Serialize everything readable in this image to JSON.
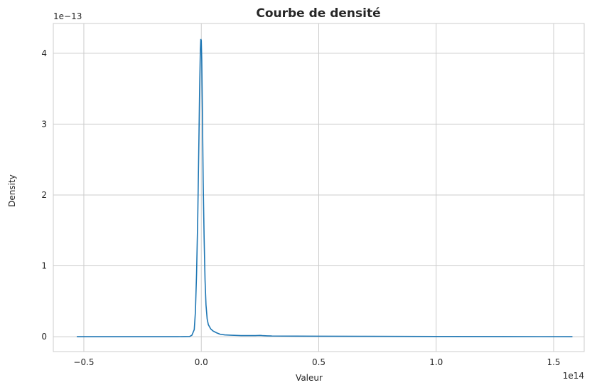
{
  "chart_data": {
    "type": "line",
    "title": "Courbe de densité",
    "xlabel": "Valeur",
    "ylabel": "Density",
    "x_offset_text": "1e14",
    "y_offset_text": "1e−13",
    "xlim": [
      -0.63,
      1.63
    ],
    "ylim": [
      -0.21,
      4.42
    ],
    "x_ticks": [
      -0.5,
      0.0,
      0.5,
      1.0,
      1.5
    ],
    "x_tick_labels": [
      "−0.5",
      "0.0",
      "0.5",
      "1.0",
      "1.5"
    ],
    "y_ticks": [
      0,
      1,
      2,
      3,
      4
    ],
    "y_tick_labels": [
      "0",
      "1",
      "2",
      "3",
      "4"
    ],
    "grid": true,
    "line_color": "#1f77b4",
    "series": [
      {
        "x": [
          -0.53,
          -0.2,
          -0.1,
          -0.05,
          -0.04,
          -0.03,
          -0.025,
          -0.02,
          -0.015,
          -0.01,
          -0.007,
          -0.004,
          -0.002,
          0.0,
          0.002,
          0.005,
          0.008,
          0.012,
          0.016,
          0.02,
          0.025,
          0.03,
          0.04,
          0.05,
          0.065,
          0.08,
          0.1,
          0.13,
          0.17,
          0.2,
          0.23,
          0.25,
          0.26,
          0.28,
          0.3,
          0.4,
          0.5,
          0.7,
          1.0,
          1.3,
          1.58
        ],
        "y": [
          0.0,
          0.0,
          0.0,
          0.003,
          0.02,
          0.1,
          0.35,
          0.9,
          1.7,
          2.8,
          3.5,
          4.05,
          4.2,
          4.18,
          3.9,
          3.1,
          2.2,
          1.4,
          0.8,
          0.45,
          0.25,
          0.17,
          0.11,
          0.08,
          0.055,
          0.035,
          0.025,
          0.02,
          0.015,
          0.015,
          0.015,
          0.018,
          0.015,
          0.012,
          0.01,
          0.008,
          0.007,
          0.005,
          0.003,
          0.002,
          0.0
        ]
      }
    ]
  }
}
